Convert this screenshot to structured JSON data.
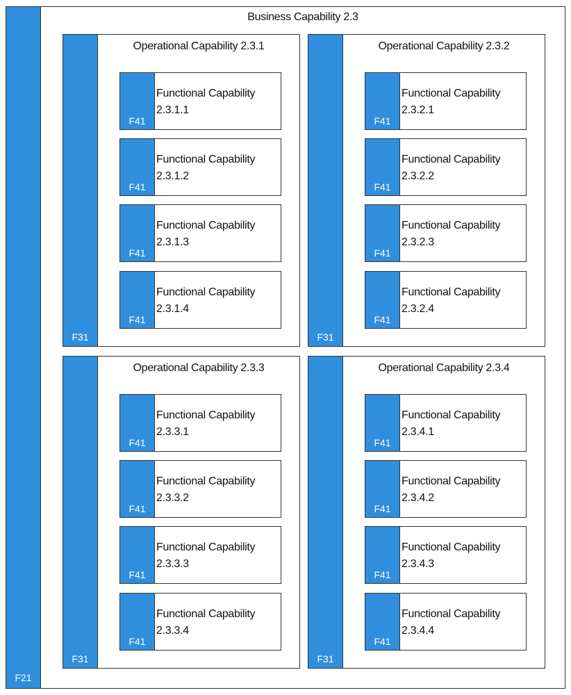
{
  "business": {
    "title": "Business Capability 2.3",
    "code": "F21"
  },
  "colors": {
    "bar": "#2f8fdd",
    "border": "#333333"
  },
  "operational": [
    {
      "title": "Operational Capability 2.3.1",
      "code": "F31",
      "functional": [
        {
          "code": "F41",
          "line1": "Functional Capability",
          "line2": "2.3.1.1"
        },
        {
          "code": "F41",
          "line1": "Functional Capability",
          "line2": "2.3.1.2"
        },
        {
          "code": "F41",
          "line1": "Functional Capability",
          "line2": "2.3.1.3"
        },
        {
          "code": "F41",
          "line1": "Functional Capability",
          "line2": "2.3.1.4"
        }
      ]
    },
    {
      "title": "Operational Capability 2.3.2",
      "code": "F31",
      "functional": [
        {
          "code": "F41",
          "line1": "Functional Capability",
          "line2": "2.3.2.1"
        },
        {
          "code": "F41",
          "line1": "Functional Capability",
          "line2": "2.3.2.2"
        },
        {
          "code": "F41",
          "line1": "Functional Capability",
          "line2": "2.3.2.3"
        },
        {
          "code": "F41",
          "line1": "Functional Capability",
          "line2": "2.3.2.4"
        }
      ]
    },
    {
      "title": "Operational Capability 2.3.3",
      "code": "F31",
      "functional": [
        {
          "code": "F41",
          "line1": "Functional Capability",
          "line2": "2.3.3.1"
        },
        {
          "code": "F41",
          "line1": "Functional Capability",
          "line2": "2.3.3.2"
        },
        {
          "code": "F41",
          "line1": "Functional Capability",
          "line2": "2.3.3.3"
        },
        {
          "code": "F41",
          "line1": "Functional Capability",
          "line2": "2.3.3.4"
        }
      ]
    },
    {
      "title": "Operational Capability 2.3.4",
      "code": "F31",
      "functional": [
        {
          "code": "F41",
          "line1": "Functional Capability",
          "line2": "2.3.4.1"
        },
        {
          "code": "F41",
          "line1": "Functional Capability",
          "line2": "2.3.4.2"
        },
        {
          "code": "F41",
          "line1": "Functional Capability",
          "line2": "2.3.4.3"
        },
        {
          "code": "F41",
          "line1": "Functional Capability",
          "line2": "2.3.4.4"
        }
      ]
    }
  ]
}
